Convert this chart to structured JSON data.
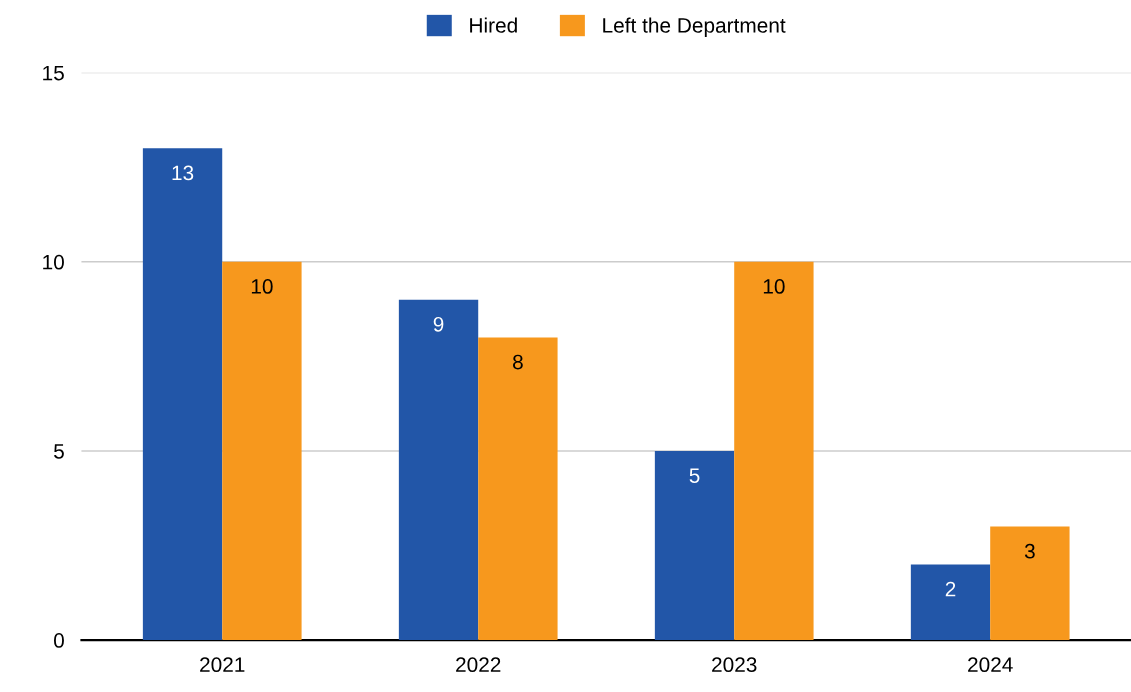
{
  "chart_data": {
    "type": "bar",
    "categories": [
      "2021",
      "2022",
      "2023",
      "2024"
    ],
    "series": [
      {
        "name": "Hired",
        "color": "#2256a8",
        "values": [
          13,
          9,
          5,
          2
        ]
      },
      {
        "name": "Left the Department",
        "color": "#f7981d",
        "values": [
          10,
          8,
          10,
          3
        ]
      }
    ],
    "ylim": [
      0,
      15
    ],
    "yticks": [
      0,
      5,
      10,
      15
    ],
    "grid": "y",
    "legend": "top",
    "data_labels": true
  }
}
